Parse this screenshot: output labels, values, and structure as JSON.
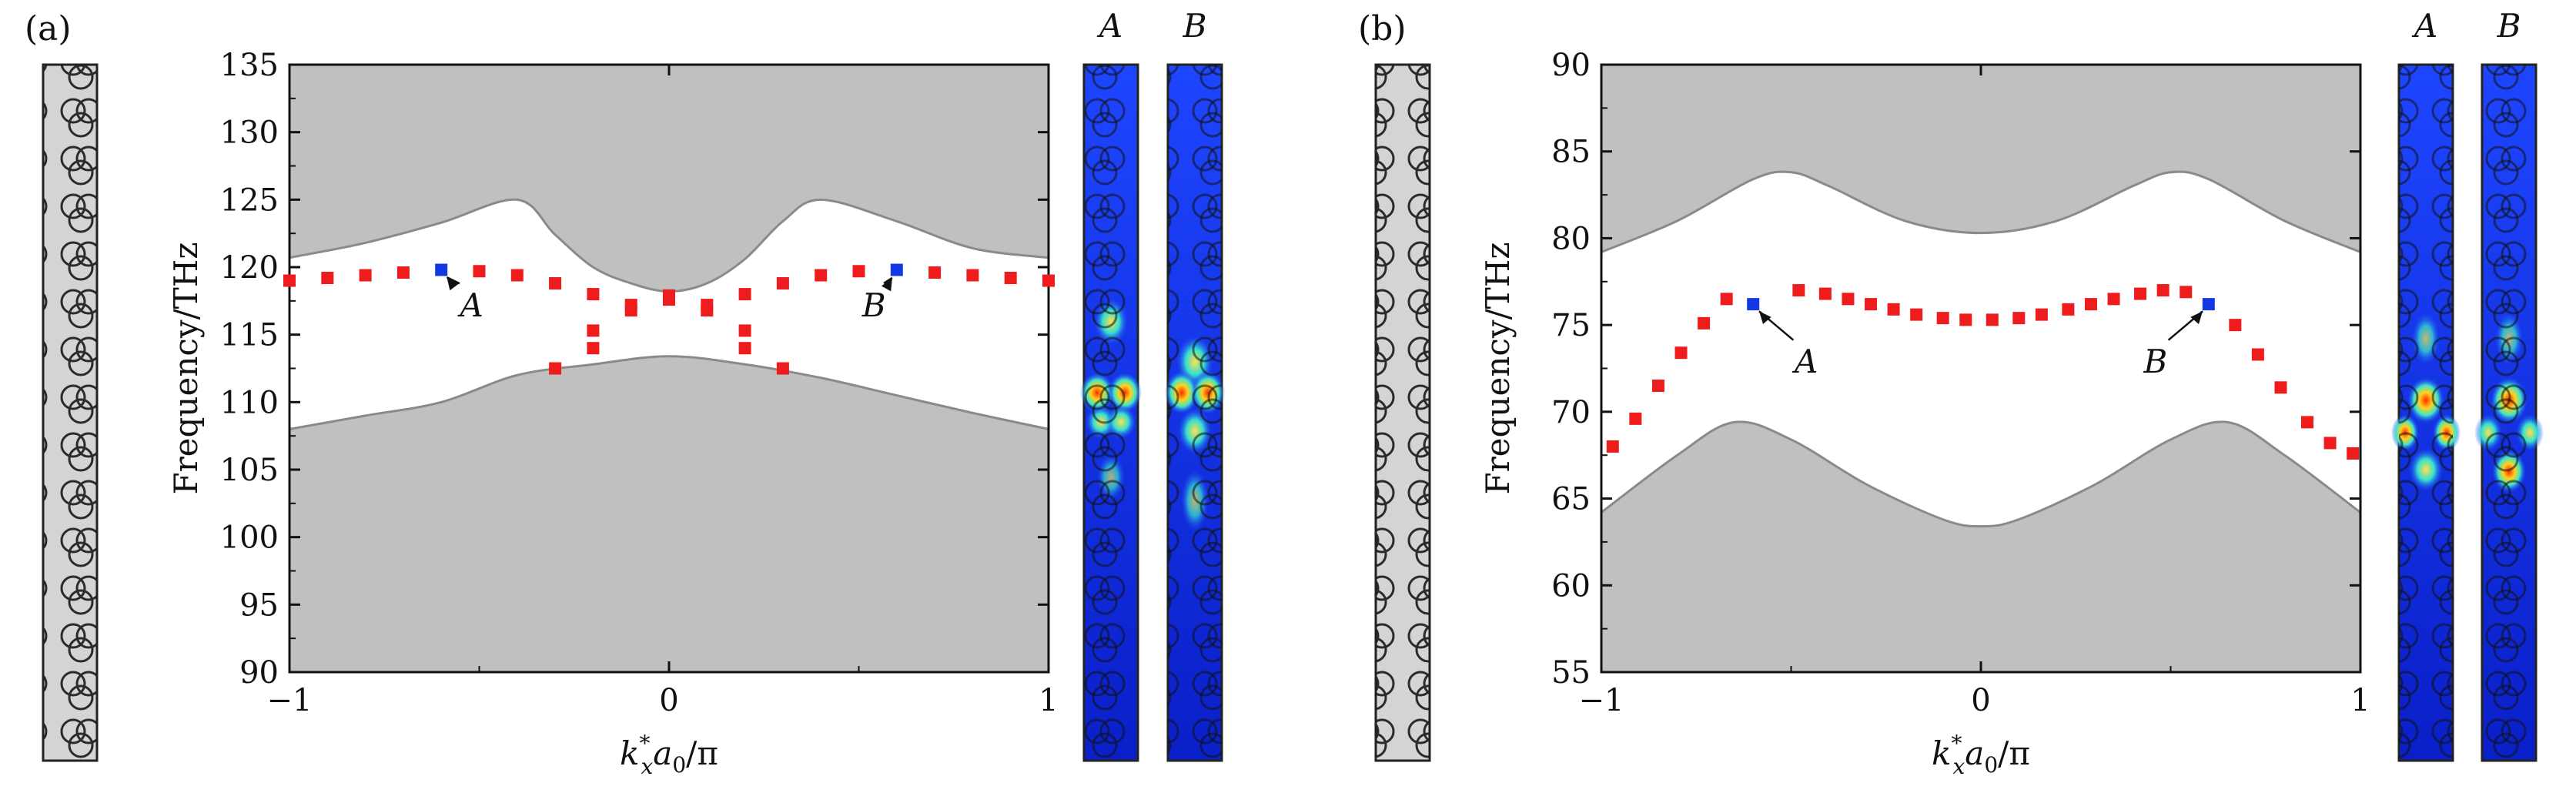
{
  "panels": [
    {
      "id": "a",
      "label": "(a)",
      "colormap_labels": [
        "A",
        "B"
      ],
      "chart_data": {
        "type": "scatter",
        "xlabel": "k_x* a0/π",
        "ylabel": "Frequency/THz",
        "xlim": [
          -1,
          1
        ],
        "ylim": [
          90,
          135
        ],
        "x_ticks": [
          "−1",
          "0",
          "1"
        ],
        "y_ticks": [
          "90",
          "95",
          "100",
          "105",
          "110",
          "115",
          "120",
          "125",
          "130",
          "135"
        ],
        "band_upper": {
          "x": [
            -1,
            -0.8,
            -0.6,
            -0.4,
            -0.3,
            -0.2,
            -0.1,
            0,
            0.1,
            0.2,
            0.3,
            0.4,
            0.6,
            0.8,
            1
          ],
          "y": [
            120.7,
            121.8,
            123.3,
            125.0,
            122.4,
            120.0,
            118.8,
            118.2,
            118.8,
            120.6,
            123.4,
            125.0,
            123.4,
            121.4,
            120.7
          ]
        },
        "band_lower": {
          "x": [
            -1,
            -0.8,
            -0.6,
            -0.4,
            -0.2,
            0,
            0.2,
            0.4,
            0.6,
            0.8,
            1
          ],
          "y": [
            108.0,
            109.0,
            110.0,
            112.0,
            112.8,
            113.4,
            112.8,
            111.8,
            110.5,
            109.2,
            108.0
          ]
        },
        "series": [
          {
            "color": "#ee1c1c",
            "x": [
              -1,
              -0.9,
              -0.8,
              -0.7,
              -0.5,
              -0.4,
              -0.3,
              -0.2,
              -0.1,
              0,
              0.1,
              0.2,
              0.3,
              0.4,
              0.5,
              0.7,
              0.8,
              0.9,
              1,
              -0.2,
              -0.1,
              0,
              0.1,
              0.2,
              -0.3,
              -0.2,
              0.2,
              0.3
            ],
            "y": [
              119.0,
              119.2,
              119.4,
              119.6,
              119.7,
              119.4,
              118.8,
              118.0,
              117.2,
              117.9,
              117.2,
              118.0,
              118.8,
              119.4,
              119.7,
              119.6,
              119.4,
              119.2,
              119.0,
              115.3,
              116.8,
              117.6,
              116.8,
              115.3,
              112.5,
              114.0,
              114.0,
              112.5
            ]
          },
          {
            "color": "#1438e6",
            "x": [
              -0.6,
              0.6
            ],
            "y": [
              119.8,
              119.8
            ]
          }
        ],
        "annotations": [
          {
            "text": "A",
            "x": -0.52,
            "y": 116.8
          },
          {
            "text": "B",
            "x": 0.54,
            "y": 116.8
          }
        ]
      }
    },
    {
      "id": "b",
      "label": "(b)",
      "colormap_labels": [
        "A",
        "B"
      ],
      "chart_data": {
        "type": "scatter",
        "xlabel": "k_x* a0/π",
        "ylabel": "Frequency/THz",
        "xlim": [
          -1,
          1
        ],
        "ylim": [
          55,
          90
        ],
        "x_ticks": [
          "−1",
          "0",
          "1"
        ],
        "y_ticks": [
          "55",
          "60",
          "65",
          "70",
          "75",
          "80",
          "85",
          "90"
        ],
        "band_upper": {
          "x": [
            -1,
            -0.8,
            -0.6,
            -0.5,
            -0.4,
            -0.2,
            0,
            0.2,
            0.4,
            0.5,
            0.6,
            0.8,
            1
          ],
          "y": [
            79.2,
            81.0,
            83.4,
            83.8,
            83.0,
            81.0,
            80.3,
            81.0,
            83.0,
            83.8,
            83.4,
            81.0,
            79.2
          ]
        },
        "band_lower": {
          "x": [
            -1,
            -0.8,
            -0.65,
            -0.5,
            -0.3,
            -0.1,
            0,
            0.1,
            0.3,
            0.5,
            0.65,
            0.8,
            1
          ],
          "y": [
            64.2,
            67.5,
            69.4,
            68.4,
            65.8,
            63.8,
            63.4,
            63.8,
            65.8,
            68.4,
            69.4,
            67.5,
            64.2
          ]
        },
        "series": [
          {
            "color": "#ee1c1c",
            "x": [
              -0.97,
              -0.91,
              -0.85,
              -0.79,
              -0.73,
              -0.67,
              -0.48,
              -0.41,
              -0.35,
              -0.29,
              -0.23,
              -0.17,
              -0.1,
              -0.04,
              0.03,
              0.1,
              0.16,
              0.23,
              0.29,
              0.35,
              0.42,
              0.48,
              0.54,
              0.67,
              0.73,
              0.79,
              0.86,
              0.92,
              0.98
            ],
            "y": [
              68.0,
              69.6,
              71.5,
              73.4,
              75.1,
              76.5,
              77.0,
              76.8,
              76.5,
              76.2,
              75.9,
              75.6,
              75.4,
              75.3,
              75.3,
              75.4,
              75.6,
              75.9,
              76.2,
              76.5,
              76.8,
              77.0,
              76.9,
              75.0,
              73.3,
              71.4,
              69.4,
              68.2,
              67.6
            ]
          },
          {
            "color": "#1438e6",
            "x": [
              -0.6,
              0.6
            ],
            "y": [
              76.2,
              76.2
            ]
          }
        ],
        "annotations": [
          {
            "text": "A",
            "x": -0.46,
            "y": 72.6
          },
          {
            "text": "B",
            "x": 0.46,
            "y": 72.6
          }
        ]
      }
    }
  ]
}
